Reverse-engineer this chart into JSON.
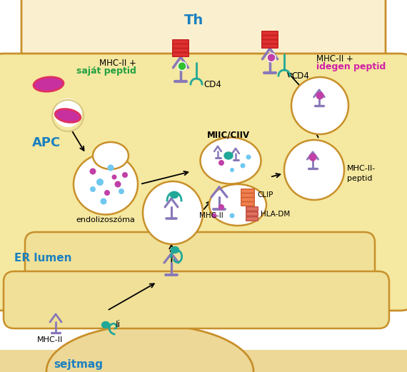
{
  "bg_color": "#FFFFFF",
  "apc_fill": "#F5E8A0",
  "apc_edge": "#C8902A",
  "er_fill": "#F0E098",
  "er_edge": "#C8902A",
  "th_fill": "#FAF0D0",
  "th_edge": "#C8902A",
  "nucleus_fill": "#EDD898",
  "nucleus_edge": "#C8902A",
  "vesicle_fill": "#FFFFFF",
  "vesicle_edge": "#C8902A",
  "mhc_color": "#8878B8",
  "teal_color": "#20A898",
  "red_color": "#E03030",
  "orange_color": "#F08050",
  "green_dot": "#30C030",
  "purple_dot": "#C040A8",
  "cyan_dot": "#70C8F0",
  "th_label": "Th",
  "apc_label": "APC",
  "er_label": "ER lumen",
  "sejtmag_label": "sejtmag",
  "endolizo_label": "endolizoszóma",
  "miic_label": "MIIC/CIIV",
  "mhcii_label": "MHC-II",
  "mhcii_peptid_label": "MHC-II-\npeptid",
  "clip_label": "CLIP",
  "hladm_label": "HLA-DM",
  "li_label": "Ii",
  "cd4_label1": "CD4",
  "cd4_label2": "CD4",
  "left_top_label1": "MHC-II +",
  "left_top_label2": "saját peptid",
  "right_top_label1": "MHC-II +",
  "right_top_label2": "idegen peptid",
  "title_color": "#1A80C0",
  "magenta_text": "#D020A8",
  "green_text": "#20A040"
}
